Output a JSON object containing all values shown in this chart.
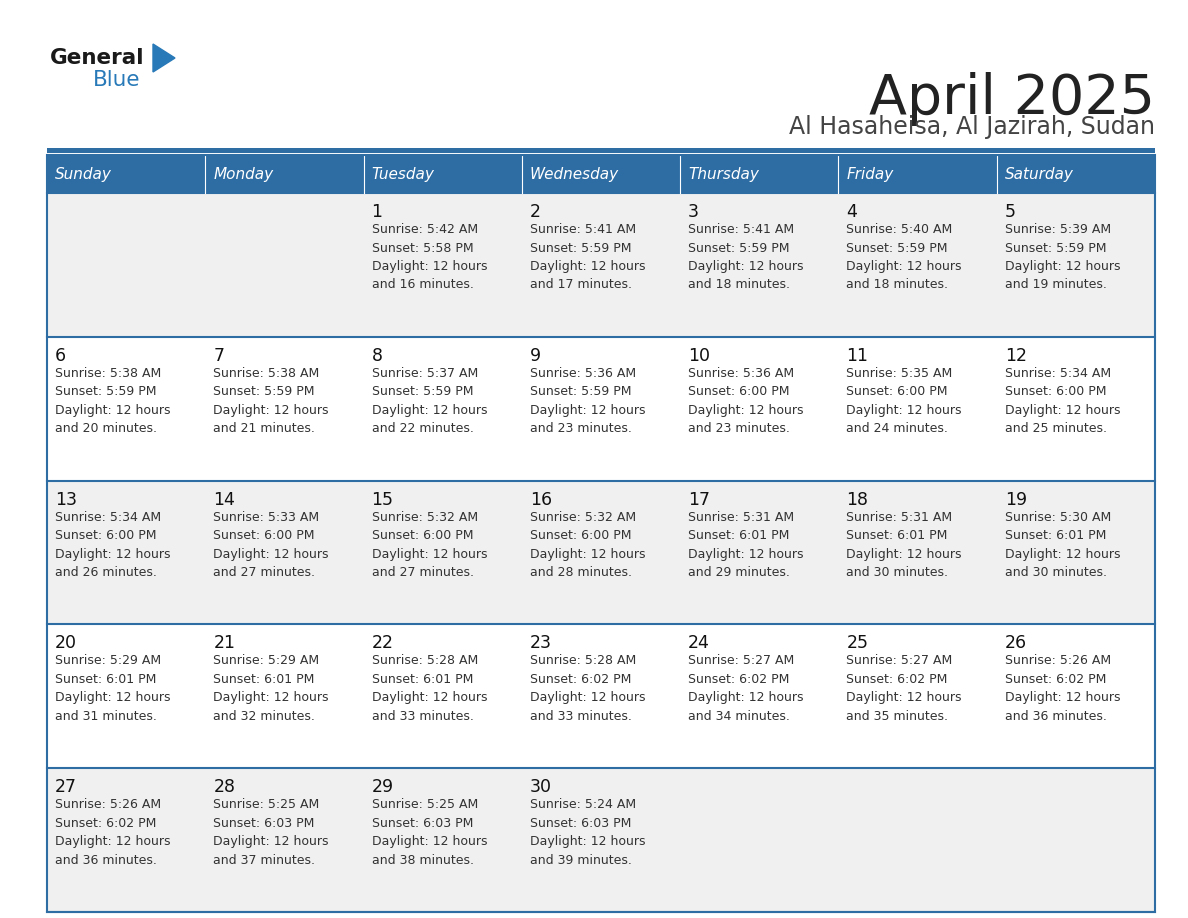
{
  "title": "April 2025",
  "subtitle": "Al Hasaheisa, Al Jazirah, Sudan",
  "days_of_week": [
    "Sunday",
    "Monday",
    "Tuesday",
    "Wednesday",
    "Thursday",
    "Friday",
    "Saturday"
  ],
  "header_bg": "#2E6DA4",
  "header_text": "#FFFFFF",
  "row_bg_light": "#F0F0F0",
  "row_bg_white": "#FFFFFF",
  "cell_text": "#333333",
  "day_num_color": "#111111",
  "border_color": "#2E6DA4",
  "title_color": "#222222",
  "subtitle_color": "#444444",
  "logo_black": "#1a1a1a",
  "logo_blue": "#2879B8",
  "calendar_data": [
    [
      null,
      null,
      {
        "day": "1",
        "sunrise": "5:42 AM",
        "sunset": "5:58 PM",
        "daylight": "12 hours",
        "daylight2": "and 16 minutes."
      },
      {
        "day": "2",
        "sunrise": "5:41 AM",
        "sunset": "5:59 PM",
        "daylight": "12 hours",
        "daylight2": "and 17 minutes."
      },
      {
        "day": "3",
        "sunrise": "5:41 AM",
        "sunset": "5:59 PM",
        "daylight": "12 hours",
        "daylight2": "and 18 minutes."
      },
      {
        "day": "4",
        "sunrise": "5:40 AM",
        "sunset": "5:59 PM",
        "daylight": "12 hours",
        "daylight2": "and 18 minutes."
      },
      {
        "day": "5",
        "sunrise": "5:39 AM",
        "sunset": "5:59 PM",
        "daylight": "12 hours",
        "daylight2": "and 19 minutes."
      }
    ],
    [
      {
        "day": "6",
        "sunrise": "5:38 AM",
        "sunset": "5:59 PM",
        "daylight": "12 hours",
        "daylight2": "and 20 minutes."
      },
      {
        "day": "7",
        "sunrise": "5:38 AM",
        "sunset": "5:59 PM",
        "daylight": "12 hours",
        "daylight2": "and 21 minutes."
      },
      {
        "day": "8",
        "sunrise": "5:37 AM",
        "sunset": "5:59 PM",
        "daylight": "12 hours",
        "daylight2": "and 22 minutes."
      },
      {
        "day": "9",
        "sunrise": "5:36 AM",
        "sunset": "5:59 PM",
        "daylight": "12 hours",
        "daylight2": "and 23 minutes."
      },
      {
        "day": "10",
        "sunrise": "5:36 AM",
        "sunset": "6:00 PM",
        "daylight": "12 hours",
        "daylight2": "and 23 minutes."
      },
      {
        "day": "11",
        "sunrise": "5:35 AM",
        "sunset": "6:00 PM",
        "daylight": "12 hours",
        "daylight2": "and 24 minutes."
      },
      {
        "day": "12",
        "sunrise": "5:34 AM",
        "sunset": "6:00 PM",
        "daylight": "12 hours",
        "daylight2": "and 25 minutes."
      }
    ],
    [
      {
        "day": "13",
        "sunrise": "5:34 AM",
        "sunset": "6:00 PM",
        "daylight": "12 hours",
        "daylight2": "and 26 minutes."
      },
      {
        "day": "14",
        "sunrise": "5:33 AM",
        "sunset": "6:00 PM",
        "daylight": "12 hours",
        "daylight2": "and 27 minutes."
      },
      {
        "day": "15",
        "sunrise": "5:32 AM",
        "sunset": "6:00 PM",
        "daylight": "12 hours",
        "daylight2": "and 27 minutes."
      },
      {
        "day": "16",
        "sunrise": "5:32 AM",
        "sunset": "6:00 PM",
        "daylight": "12 hours",
        "daylight2": "and 28 minutes."
      },
      {
        "day": "17",
        "sunrise": "5:31 AM",
        "sunset": "6:01 PM",
        "daylight": "12 hours",
        "daylight2": "and 29 minutes."
      },
      {
        "day": "18",
        "sunrise": "5:31 AM",
        "sunset": "6:01 PM",
        "daylight": "12 hours",
        "daylight2": "and 30 minutes."
      },
      {
        "day": "19",
        "sunrise": "5:30 AM",
        "sunset": "6:01 PM",
        "daylight": "12 hours",
        "daylight2": "and 30 minutes."
      }
    ],
    [
      {
        "day": "20",
        "sunrise": "5:29 AM",
        "sunset": "6:01 PM",
        "daylight": "12 hours",
        "daylight2": "and 31 minutes."
      },
      {
        "day": "21",
        "sunrise": "5:29 AM",
        "sunset": "6:01 PM",
        "daylight": "12 hours",
        "daylight2": "and 32 minutes."
      },
      {
        "day": "22",
        "sunrise": "5:28 AM",
        "sunset": "6:01 PM",
        "daylight": "12 hours",
        "daylight2": "and 33 minutes."
      },
      {
        "day": "23",
        "sunrise": "5:28 AM",
        "sunset": "6:02 PM",
        "daylight": "12 hours",
        "daylight2": "and 33 minutes."
      },
      {
        "day": "24",
        "sunrise": "5:27 AM",
        "sunset": "6:02 PM",
        "daylight": "12 hours",
        "daylight2": "and 34 minutes."
      },
      {
        "day": "25",
        "sunrise": "5:27 AM",
        "sunset": "6:02 PM",
        "daylight": "12 hours",
        "daylight2": "and 35 minutes."
      },
      {
        "day": "26",
        "sunrise": "5:26 AM",
        "sunset": "6:02 PM",
        "daylight": "12 hours",
        "daylight2": "and 36 minutes."
      }
    ],
    [
      {
        "day": "27",
        "sunrise": "5:26 AM",
        "sunset": "6:02 PM",
        "daylight": "12 hours",
        "daylight2": "and 36 minutes."
      },
      {
        "day": "28",
        "sunrise": "5:25 AM",
        "sunset": "6:03 PM",
        "daylight": "12 hours",
        "daylight2": "and 37 minutes."
      },
      {
        "day": "29",
        "sunrise": "5:25 AM",
        "sunset": "6:03 PM",
        "daylight": "12 hours",
        "daylight2": "and 38 minutes."
      },
      {
        "day": "30",
        "sunrise": "5:24 AM",
        "sunset": "6:03 PM",
        "daylight": "12 hours",
        "daylight2": "and 39 minutes."
      },
      null,
      null,
      null
    ]
  ]
}
